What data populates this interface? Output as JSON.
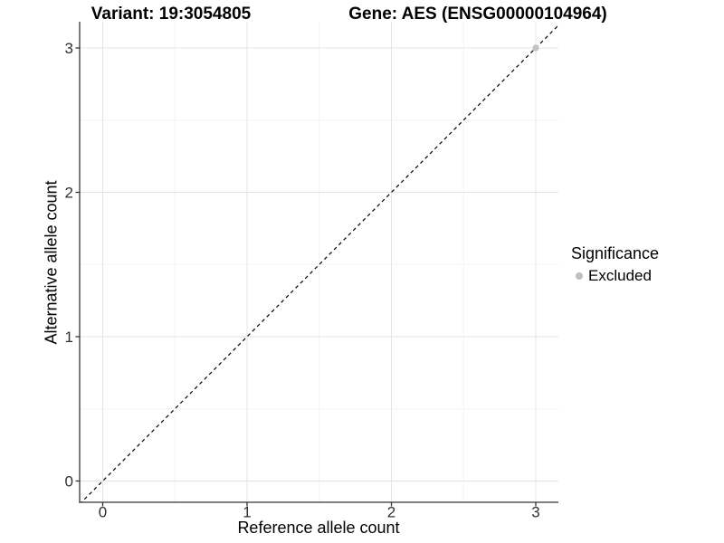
{
  "chart_data": {
    "type": "scatter",
    "title_left": "Variant: 19:3054805",
    "title_right": "Gene: AES (ENSG00000104964)",
    "xlabel": "Reference allele count",
    "ylabel": "Alternative allele count",
    "x_ticks": [
      0,
      1,
      2,
      3
    ],
    "y_ticks": [
      0,
      1,
      2,
      3
    ],
    "x_minor_ticks": [
      0.5,
      1.5,
      2.5
    ],
    "y_minor_ticks": [
      0.5,
      1.5,
      2.5
    ],
    "xlim": [
      -0.16,
      3.16
    ],
    "ylim": [
      -0.15,
      3.18
    ],
    "grid": "major+minor",
    "legend_position": "right",
    "legend_title": "Significance",
    "series": [
      {
        "name": "Excluded",
        "color": "#c2c2c2",
        "points": [
          {
            "x": 3,
            "y": 3
          }
        ]
      }
    ],
    "reference_line": {
      "kind": "identity",
      "slope": 1,
      "intercept": 0,
      "style": "dashed",
      "color": "#000000"
    }
  },
  "colors": {
    "background": "#ffffff",
    "major_grid": "#e4e4e4",
    "minor_grid": "#f4f4f4",
    "axis_line": "#333333",
    "tick_text": "#303030",
    "title_text": "#000000",
    "legend_swatch": "#bebebe",
    "reference_line": "#000000"
  }
}
